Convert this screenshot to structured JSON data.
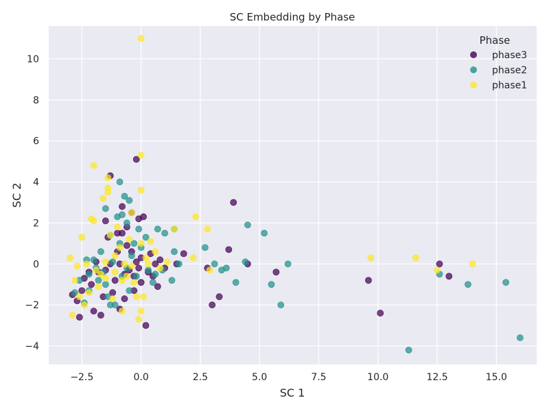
{
  "chart_data": {
    "type": "scatter",
    "title": "SC Embedding by Phase",
    "xlabel": "SC 1",
    "ylabel": "SC 2",
    "xlim": [
      -3.9,
      16.7
    ],
    "ylim": [
      -4.9,
      11.6
    ],
    "xticks": [
      -2.5,
      0.0,
      2.5,
      5.0,
      7.5,
      10.0,
      12.5,
      15.0
    ],
    "xtick_labels": [
      "−2.5",
      "0.0",
      "2.5",
      "5.0",
      "7.5",
      "10.0",
      "12.5",
      "15.0"
    ],
    "yticks": [
      -4,
      -2,
      0,
      2,
      4,
      6,
      8,
      10
    ],
    "ytick_labels": [
      "−4",
      "−2",
      "0",
      "2",
      "4",
      "6",
      "8",
      "10"
    ],
    "grid": true,
    "legend": {
      "title": "Phase",
      "placement": "top-right"
    },
    "series": [
      {
        "name": "phase3",
        "color": "#440154",
        "points": [
          [
            -2.9,
            -1.5
          ],
          [
            -2.7,
            -1.8
          ],
          [
            -2.6,
            -2.6
          ],
          [
            -2.5,
            -1.3
          ],
          [
            -2.4,
            -0.7
          ],
          [
            -2.2,
            -0.4
          ],
          [
            -2.1,
            -1.0
          ],
          [
            -2.0,
            -2.3
          ],
          [
            -1.8,
            -0.4
          ],
          [
            -1.7,
            -2.5
          ],
          [
            -1.6,
            -1.6
          ],
          [
            -1.5,
            2.1
          ],
          [
            -1.5,
            -0.3
          ],
          [
            -1.4,
            1.3
          ],
          [
            -1.3,
            4.3
          ],
          [
            -1.3,
            0.0
          ],
          [
            -1.2,
            -1.4
          ],
          [
            -1.1,
            -0.8
          ],
          [
            -1.0,
            1.5
          ],
          [
            -1.0,
            0.6
          ],
          [
            -0.9,
            -2.2
          ],
          [
            -0.9,
            0.0
          ],
          [
            -0.8,
            2.8
          ],
          [
            -0.8,
            1.5
          ],
          [
            -0.7,
            -0.5
          ],
          [
            -0.7,
            -1.7
          ],
          [
            -0.6,
            1.8
          ],
          [
            -0.5,
            -0.3
          ],
          [
            -0.4,
            2.5
          ],
          [
            -0.4,
            0.6
          ],
          [
            -0.3,
            -0.6
          ],
          [
            -0.2,
            5.1
          ],
          [
            -0.2,
            0.1
          ],
          [
            -0.1,
            -0.2
          ],
          [
            -0.1,
            2.2
          ],
          [
            0.0,
            -0.9
          ],
          [
            0.0,
            0.3
          ],
          [
            0.1,
            2.3
          ],
          [
            0.2,
            -3.0
          ],
          [
            0.3,
            -0.4
          ],
          [
            0.4,
            0.5
          ],
          [
            0.5,
            -0.6
          ],
          [
            0.7,
            -1.1
          ],
          [
            0.8,
            0.2
          ],
          [
            1.0,
            -0.2
          ],
          [
            1.5,
            0.0
          ],
          [
            1.8,
            0.5
          ],
          [
            2.8,
            -0.2
          ],
          [
            3.0,
            -2.0
          ],
          [
            3.3,
            -1.6
          ],
          [
            3.7,
            0.7
          ],
          [
            3.9,
            3.0
          ],
          [
            4.5,
            0.0
          ],
          [
            5.7,
            -0.4
          ],
          [
            9.6,
            -0.8
          ],
          [
            10.1,
            -2.4
          ],
          [
            12.6,
            0.0
          ],
          [
            13.0,
            -0.6
          ],
          [
            -0.6,
            0.9
          ],
          [
            -1.9,
            0.1
          ],
          [
            -0.3,
            -1.3
          ],
          [
            0.6,
            0.0
          ]
        ]
      },
      {
        "name": "phase2",
        "color": "#21918c",
        "points": [
          [
            -2.8,
            -1.4
          ],
          [
            -2.6,
            -0.8
          ],
          [
            -2.4,
            -1.9
          ],
          [
            -2.3,
            0.2
          ],
          [
            -2.2,
            -1.3
          ],
          [
            -2.0,
            0.2
          ],
          [
            -1.8,
            -0.8
          ],
          [
            -1.7,
            0.6
          ],
          [
            -1.6,
            -0.4
          ],
          [
            -1.5,
            -1.0
          ],
          [
            -1.5,
            2.7
          ],
          [
            -1.4,
            -1.6
          ],
          [
            -1.3,
            1.4
          ],
          [
            -1.2,
            0.1
          ],
          [
            -1.1,
            -2.0
          ],
          [
            -1.0,
            2.3
          ],
          [
            -0.9,
            1.0
          ],
          [
            -0.9,
            4.0
          ],
          [
            -0.8,
            -0.6
          ],
          [
            -0.8,
            2.4
          ],
          [
            -0.7,
            3.3
          ],
          [
            -0.6,
            2.0
          ],
          [
            -0.5,
            3.1
          ],
          [
            -0.5,
            -1.3
          ],
          [
            -0.4,
            0.4
          ],
          [
            -0.3,
            1.0
          ],
          [
            -0.2,
            -0.6
          ],
          [
            -0.1,
            1.7
          ],
          [
            0.0,
            0.8
          ],
          [
            0.2,
            1.3
          ],
          [
            0.3,
            -0.3
          ],
          [
            0.5,
            -0.9
          ],
          [
            0.7,
            1.7
          ],
          [
            0.9,
            -0.3
          ],
          [
            1.0,
            1.5
          ],
          [
            1.3,
            -0.8
          ],
          [
            1.4,
            1.7
          ],
          [
            1.4,
            0.6
          ],
          [
            1.6,
            0.0
          ],
          [
            2.7,
            0.8
          ],
          [
            3.1,
            0.0
          ],
          [
            3.4,
            -0.3
          ],
          [
            3.6,
            -0.2
          ],
          [
            4.0,
            -0.9
          ],
          [
            4.4,
            0.1
          ],
          [
            4.5,
            1.9
          ],
          [
            5.2,
            1.5
          ],
          [
            5.5,
            -1.0
          ],
          [
            5.9,
            -2.0
          ],
          [
            6.2,
            0.0
          ],
          [
            11.3,
            -4.2
          ],
          [
            12.6,
            -0.5
          ],
          [
            13.8,
            -1.0
          ],
          [
            15.4,
            -0.9
          ],
          [
            16.0,
            -3.6
          ],
          [
            -2.2,
            -0.5
          ],
          [
            -1.9,
            -0.2
          ],
          [
            0.6,
            -0.5
          ],
          [
            -0.6,
            -0.2
          ],
          [
            -1.3,
            -2.0
          ]
        ]
      },
      {
        "name": "phase1",
        "color": "#fde725",
        "points": [
          [
            -3.0,
            0.3
          ],
          [
            -2.9,
            -2.5
          ],
          [
            -2.8,
            -0.8
          ],
          [
            -2.7,
            -0.1
          ],
          [
            -2.5,
            1.3
          ],
          [
            -2.4,
            -2.0
          ],
          [
            -2.2,
            -1.4
          ],
          [
            -2.1,
            2.2
          ],
          [
            -2.0,
            4.8
          ],
          [
            -2.0,
            2.1
          ],
          [
            -1.9,
            -0.3
          ],
          [
            -1.8,
            -1.1
          ],
          [
            -1.6,
            3.2
          ],
          [
            -1.5,
            -0.7
          ],
          [
            -1.4,
            4.2
          ],
          [
            -1.4,
            3.7
          ],
          [
            -1.4,
            3.5
          ],
          [
            -1.3,
            1.4
          ],
          [
            -1.2,
            -1.7
          ],
          [
            -1.1,
            0.4
          ],
          [
            -1.0,
            1.8
          ],
          [
            -0.9,
            0.8
          ],
          [
            -0.8,
            -2.3
          ],
          [
            -0.8,
            -0.8
          ],
          [
            -0.7,
            0.0
          ],
          [
            -0.6,
            -0.6
          ],
          [
            -0.5,
            1.2
          ],
          [
            -0.4,
            2.5
          ],
          [
            -0.3,
            -0.9
          ],
          [
            -0.2,
            -1.6
          ],
          [
            -0.1,
            -2.7
          ],
          [
            0.0,
            11.0
          ],
          [
            0.0,
            5.3
          ],
          [
            0.0,
            3.6
          ],
          [
            0.0,
            1.0
          ],
          [
            0.0,
            -2.3
          ],
          [
            0.1,
            -1.6
          ],
          [
            0.3,
            0.0
          ],
          [
            0.4,
            1.1
          ],
          [
            0.6,
            0.6
          ],
          [
            0.8,
            -0.2
          ],
          [
            1.1,
            0.1
          ],
          [
            1.4,
            1.7
          ],
          [
            2.2,
            0.3
          ],
          [
            2.3,
            2.3
          ],
          [
            2.8,
            1.7
          ],
          [
            2.9,
            -0.3
          ],
          [
            9.7,
            0.3
          ],
          [
            11.6,
            0.3
          ],
          [
            12.5,
            -0.3
          ],
          [
            14.0,
            0.0
          ],
          [
            -2.3,
            0.0
          ],
          [
            -1.7,
            -0.5
          ],
          [
            -1.1,
            -0.4
          ],
          [
            -0.4,
            -0.1
          ],
          [
            0.2,
            0.3
          ],
          [
            -2.6,
            -1.6
          ],
          [
            -1.5,
            0.1
          ]
        ]
      }
    ]
  }
}
